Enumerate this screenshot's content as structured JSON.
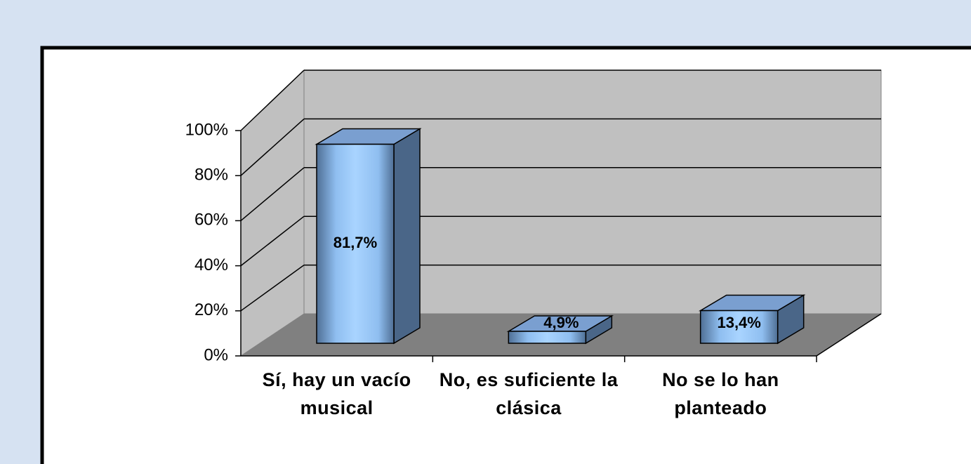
{
  "chart_data": {
    "type": "bar3d",
    "categories": [
      "Sí, hay un vacío musical",
      "No, es suficiente la clásica",
      "No se lo han planteado"
    ],
    "values": [
      81.7,
      4.9,
      13.4
    ],
    "value_labels": [
      "81,7%",
      "4,9%",
      "13,4%"
    ],
    "ylim": [
      0,
      100
    ],
    "yticks": [
      {
        "value": 0,
        "label": "0%"
      },
      {
        "value": 20,
        "label": "20%"
      },
      {
        "value": 40,
        "label": "40%"
      },
      {
        "value": 60,
        "label": "60%"
      },
      {
        "value": 80,
        "label": "80%"
      },
      {
        "value": 100,
        "label": "100%"
      }
    ],
    "grid": true,
    "color": "#99ccff"
  }
}
